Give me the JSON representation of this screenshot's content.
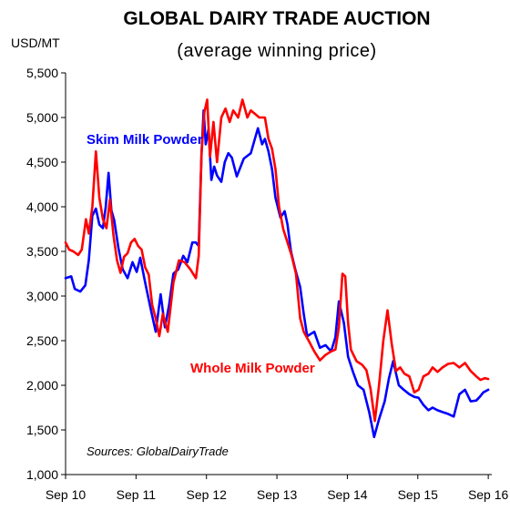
{
  "chart_data": {
    "type": "line",
    "title": "GLOBAL DAIRY TRADE AUCTION",
    "subtitle": "(average winning price)",
    "ylabel": "USD/MT",
    "xlabel": "",
    "ylim": [
      1000,
      5500
    ],
    "yticks": [
      1000,
      1500,
      2000,
      2500,
      3000,
      3500,
      4000,
      4500,
      5000,
      5500
    ],
    "ytick_labels": [
      "1,000",
      "1,500",
      "2,000",
      "2,500",
      "3,000",
      "3,500",
      "4,000",
      "4,500",
      "5,000",
      "5,500"
    ],
    "xlim": [
      2010.67,
      2016.72
    ],
    "xticks": [
      2010.67,
      2011.67,
      2012.67,
      2013.67,
      2014.67,
      2015.67,
      2016.67
    ],
    "xtick_labels": [
      "Sep 10",
      "Sep 11",
      "Sep 12",
      "Sep 13",
      "Sep 14",
      "Sep 15",
      "Sep 16"
    ],
    "grid": false,
    "source": "Sources: GlobalDairyTrade",
    "colors": {
      "skim": "#0000ff",
      "whole": "#ff0000",
      "axis": "#000000"
    },
    "series": [
      {
        "name": "Skim Milk Powder",
        "color": "#0000ff",
        "label_near": [
          2010.95,
          4720
        ],
        "x": [
          2010.67,
          2010.75,
          2010.8,
          2010.88,
          2010.95,
          2011.0,
          2011.05,
          2011.1,
          2011.15,
          2011.2,
          2011.24,
          2011.28,
          2011.32,
          2011.36,
          2011.42,
          2011.48,
          2011.55,
          2011.62,
          2011.68,
          2011.73,
          2011.8,
          2011.88,
          2011.95,
          2012.02,
          2012.08,
          2012.14,
          2012.2,
          2012.27,
          2012.34,
          2012.4,
          2012.47,
          2012.52,
          2012.56,
          2012.6,
          2012.63,
          2012.66,
          2012.7,
          2012.74,
          2012.78,
          2012.82,
          2012.88,
          2012.93,
          2012.98,
          2013.03,
          2013.1,
          2013.2,
          2013.3,
          2013.4,
          2013.46,
          2013.5,
          2013.55,
          2013.6,
          2013.65,
          2013.72,
          2013.78,
          2013.82,
          2013.87,
          2013.93,
          2014.0,
          2014.05,
          2014.1,
          2014.2,
          2014.28,
          2014.36,
          2014.44,
          2014.5,
          2014.55,
          2014.62,
          2014.68,
          2014.75,
          2014.82,
          2014.9,
          2014.98,
          2015.05,
          2015.12,
          2015.2,
          2015.26,
          2015.32,
          2015.4,
          2015.47,
          2015.55,
          2015.62,
          2015.68,
          2015.75,
          2015.82,
          2015.88,
          2015.95,
          2016.02,
          2016.1,
          2016.18,
          2016.26,
          2016.34,
          2016.42,
          2016.5,
          2016.55,
          2016.6,
          2016.67
        ],
        "y": [
          3200,
          3220,
          3080,
          3050,
          3120,
          3400,
          3900,
          3980,
          3800,
          3760,
          4000,
          4380,
          3960,
          3850,
          3540,
          3300,
          3200,
          3380,
          3270,
          3430,
          3150,
          2850,
          2600,
          3020,
          2650,
          2900,
          3250,
          3300,
          3450,
          3380,
          3600,
          3600,
          3560,
          4600,
          5080,
          4700,
          4870,
          4300,
          4450,
          4350,
          4280,
          4500,
          4600,
          4550,
          4340,
          4540,
          4600,
          4880,
          4700,
          4760,
          4620,
          4420,
          4100,
          3880,
          3950,
          3800,
          3500,
          3300,
          3100,
          2800,
          2550,
          2600,
          2420,
          2450,
          2380,
          2540,
          2940,
          2700,
          2320,
          2150,
          2000,
          1950,
          1700,
          1420,
          1620,
          1820,
          2080,
          2270,
          2000,
          1950,
          1900,
          1870,
          1860,
          1780,
          1720,
          1750,
          1720,
          1700,
          1680,
          1650,
          1900,
          1950,
          1820,
          1830,
          1870,
          1920,
          1950
        ]
      },
      {
        "name": "Whole Milk Powder",
        "color": "#ff0000",
        "label_near": [
          2015.1,
          2180
        ],
        "x": [
          2010.67,
          2010.72,
          2010.78,
          2010.85,
          2010.9,
          2010.96,
          2011.0,
          2011.05,
          2011.1,
          2011.15,
          2011.2,
          2011.25,
          2011.3,
          2011.35,
          2011.4,
          2011.45,
          2011.5,
          2011.55,
          2011.6,
          2011.65,
          2011.7,
          2011.75,
          2011.8,
          2011.85,
          2011.9,
          2011.95,
          2012.0,
          2012.05,
          2012.12,
          2012.2,
          2012.28,
          2012.36,
          2012.44,
          2012.52,
          2012.56,
          2012.6,
          2012.64,
          2012.68,
          2012.72,
          2012.77,
          2012.82,
          2012.88,
          2012.94,
          2013.0,
          2013.05,
          2013.12,
          2013.18,
          2013.25,
          2013.3,
          2013.36,
          2013.42,
          2013.5,
          2013.55,
          2013.6,
          2013.65,
          2013.7,
          2013.76,
          2013.82,
          2013.88,
          2013.94,
          2014.0,
          2014.05,
          2014.12,
          2014.2,
          2014.28,
          2014.36,
          2014.44,
          2014.5,
          2014.55,
          2014.6,
          2014.64,
          2014.68,
          2014.72,
          2014.8,
          2014.88,
          2014.94,
          2015.0,
          2015.06,
          2015.12,
          2015.18,
          2015.24,
          2015.3,
          2015.36,
          2015.42,
          2015.48,
          2015.55,
          2015.62,
          2015.68,
          2015.75,
          2015.82,
          2015.88,
          2015.95,
          2016.02,
          2016.1,
          2016.18,
          2016.26,
          2016.34,
          2016.42,
          2016.5,
          2016.56,
          2016.62,
          2016.67
        ],
        "y": [
          3600,
          3520,
          3500,
          3460,
          3520,
          3860,
          3700,
          4000,
          4620,
          4100,
          3860,
          3760,
          4080,
          3680,
          3400,
          3260,
          3440,
          3480,
          3600,
          3640,
          3560,
          3520,
          3320,
          3240,
          2900,
          2750,
          2550,
          2800,
          2600,
          3150,
          3400,
          3380,
          3300,
          3200,
          3450,
          4600,
          5060,
          5200,
          4560,
          4950,
          4500,
          5000,
          5100,
          4950,
          5080,
          5000,
          5200,
          5000,
          5080,
          5040,
          5000,
          5000,
          4760,
          4650,
          4420,
          4000,
          3750,
          3600,
          3450,
          3250,
          2750,
          2600,
          2500,
          2380,
          2280,
          2340,
          2380,
          2400,
          2650,
          3250,
          3220,
          2700,
          2400,
          2270,
          2230,
          2170,
          1960,
          1600,
          2000,
          2500,
          2840,
          2460,
          2160,
          2200,
          2130,
          2100,
          1920,
          1950,
          2100,
          2130,
          2200,
          2150,
          2200,
          2240,
          2250,
          2200,
          2250,
          2160,
          2100,
          2060,
          2080,
          2070
        ]
      }
    ]
  }
}
